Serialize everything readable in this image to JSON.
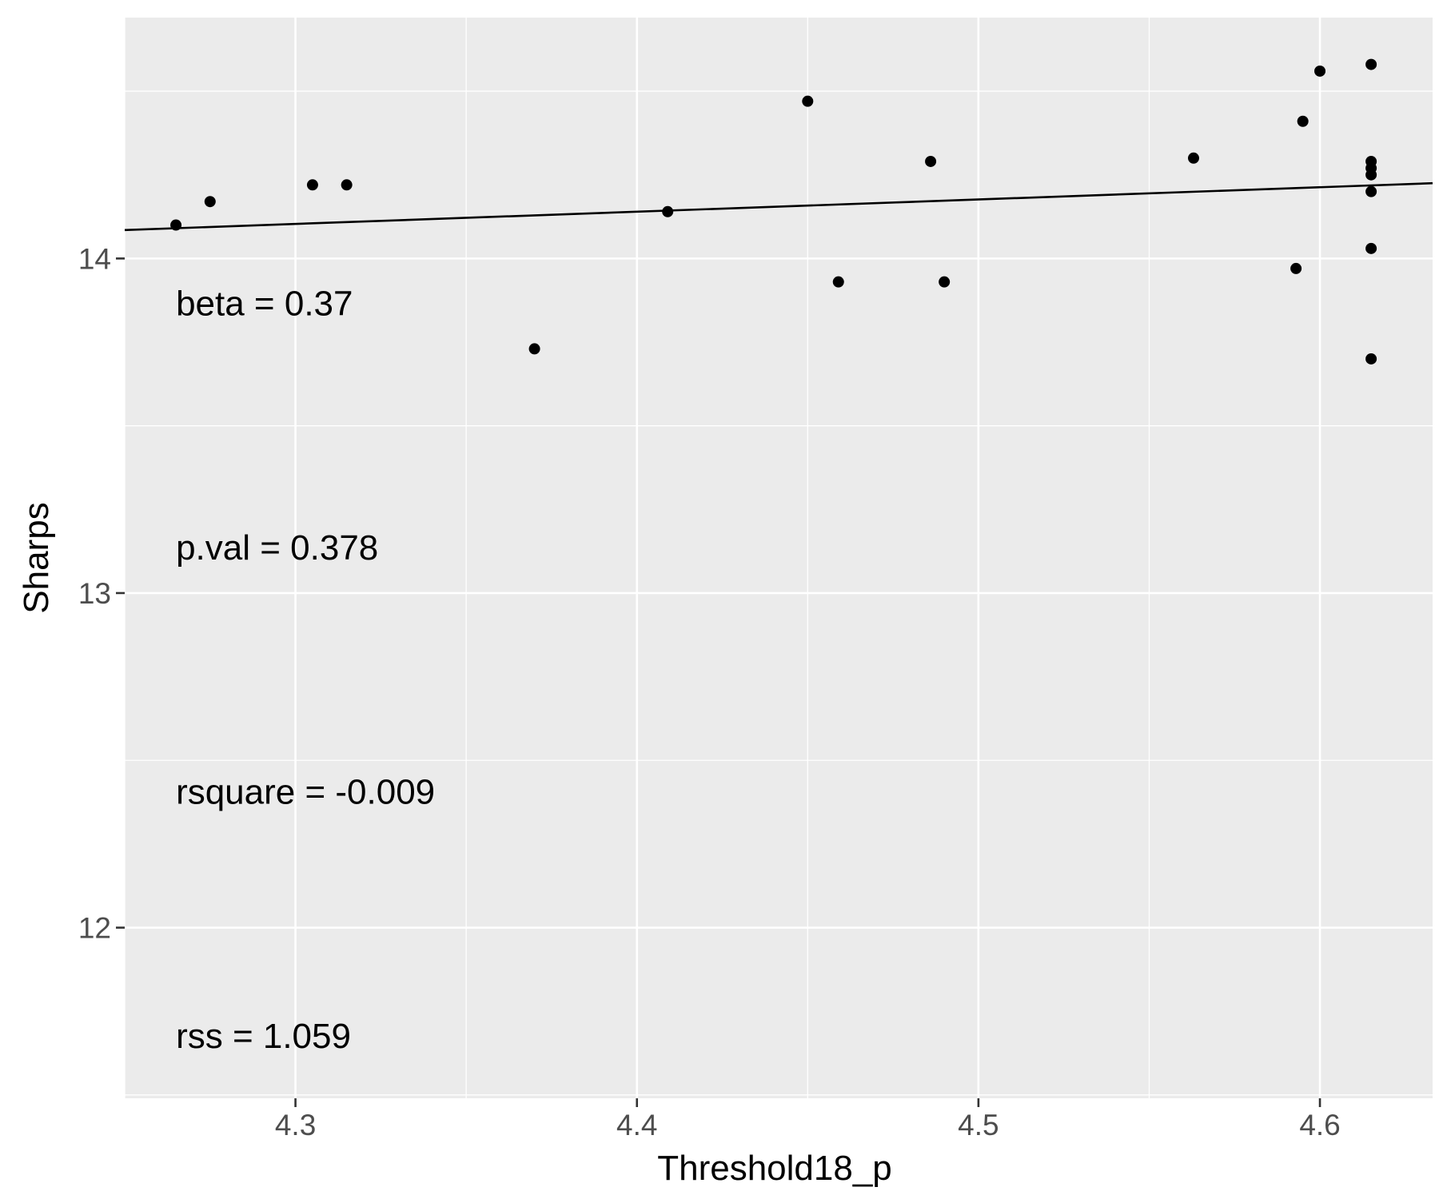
{
  "chart_data": {
    "type": "scatter",
    "xlabel": "Threshold18_p",
    "ylabel": "Sharps",
    "xlim": [
      4.25,
      4.633
    ],
    "ylim": [
      11.49,
      14.72
    ],
    "x_ticks": [
      4.3,
      4.4,
      4.5,
      4.6
    ],
    "x_tick_labels": [
      "4.3",
      "4.4",
      "4.5",
      "4.6"
    ],
    "y_ticks": [
      12,
      13,
      14
    ],
    "y_tick_labels": [
      "12",
      "13",
      "14"
    ],
    "x_minor": [
      4.25,
      4.35,
      4.45,
      4.55
    ],
    "y_minor": [
      11.5,
      12.5,
      13.5,
      14.5
    ],
    "grid": true,
    "points": [
      {
        "x": 4.265,
        "y": 14.1
      },
      {
        "x": 4.275,
        "y": 14.17
      },
      {
        "x": 4.305,
        "y": 14.22
      },
      {
        "x": 4.315,
        "y": 14.22
      },
      {
        "x": 4.37,
        "y": 13.73
      },
      {
        "x": 4.409,
        "y": 14.14
      },
      {
        "x": 4.45,
        "y": 14.47
      },
      {
        "x": 4.459,
        "y": 13.93
      },
      {
        "x": 4.486,
        "y": 14.29
      },
      {
        "x": 4.49,
        "y": 13.93
      },
      {
        "x": 4.563,
        "y": 14.3
      },
      {
        "x": 4.593,
        "y": 13.97
      },
      {
        "x": 4.595,
        "y": 14.41
      },
      {
        "x": 4.6,
        "y": 14.56
      },
      {
        "x": 4.615,
        "y": 14.58
      },
      {
        "x": 4.615,
        "y": 14.29
      },
      {
        "x": 4.615,
        "y": 14.27
      },
      {
        "x": 4.615,
        "y": 14.25
      },
      {
        "x": 4.615,
        "y": 14.2
      },
      {
        "x": 4.615,
        "y": 14.03
      },
      {
        "x": 4.615,
        "y": 13.7
      }
    ],
    "fit_line": {
      "x": [
        4.25,
        4.633
      ],
      "y": [
        14.085,
        14.225
      ]
    },
    "annotations": [
      {
        "text": "beta = 0.37",
        "x": 4.265,
        "y": 13.83
      },
      {
        "text": "p.val = 0.378",
        "x": 4.265,
        "y": 13.1
      },
      {
        "text": "rsquare = -0.009",
        "x": 4.265,
        "y": 12.37
      },
      {
        "text": "rss = 1.059",
        "x": 4.265,
        "y": 11.64
      }
    ]
  }
}
